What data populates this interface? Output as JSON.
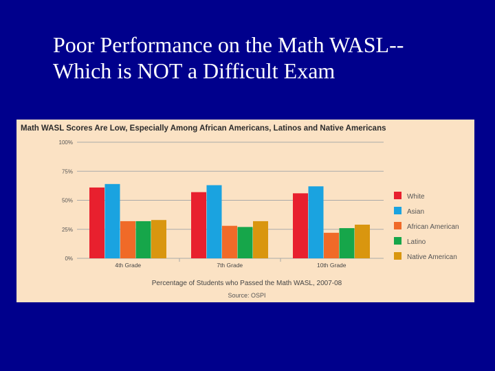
{
  "slide": {
    "title_line1": "Poor Performance on the Math WASL--",
    "title_line2": "Which is NOT a Difficult Exam"
  },
  "chart_data": {
    "type": "bar",
    "title": "Math WASL Scores Are Low, Especially Among African Americans, Latinos and Native Americans",
    "xlabel": "Percentage of Students who Passed the Math WASL, 2007-08",
    "source": "Source: OSPI",
    "ylabel": "",
    "ylim": [
      0,
      100
    ],
    "yticks": [
      0,
      25,
      50,
      75,
      100
    ],
    "ytick_labels": [
      "0%",
      "25%",
      "50%",
      "75%",
      "100%"
    ],
    "grid": true,
    "legend_position": "right",
    "categories": [
      "4th Grade",
      "7th Grade",
      "10th Grade"
    ],
    "series": [
      {
        "name": "White",
        "color": "#e8202e",
        "values": [
          61,
          57,
          56
        ]
      },
      {
        "name": "Asian",
        "color": "#1aa3e0",
        "values": [
          64,
          63,
          62
        ]
      },
      {
        "name": "African American",
        "color": "#f06a28",
        "values": [
          32,
          28,
          22
        ]
      },
      {
        "name": "Latino",
        "color": "#16a64a",
        "values": [
          32,
          27,
          26
        ]
      },
      {
        "name": "Native American",
        "color": "#d9960f",
        "values": [
          33,
          32,
          29
        ]
      }
    ]
  }
}
